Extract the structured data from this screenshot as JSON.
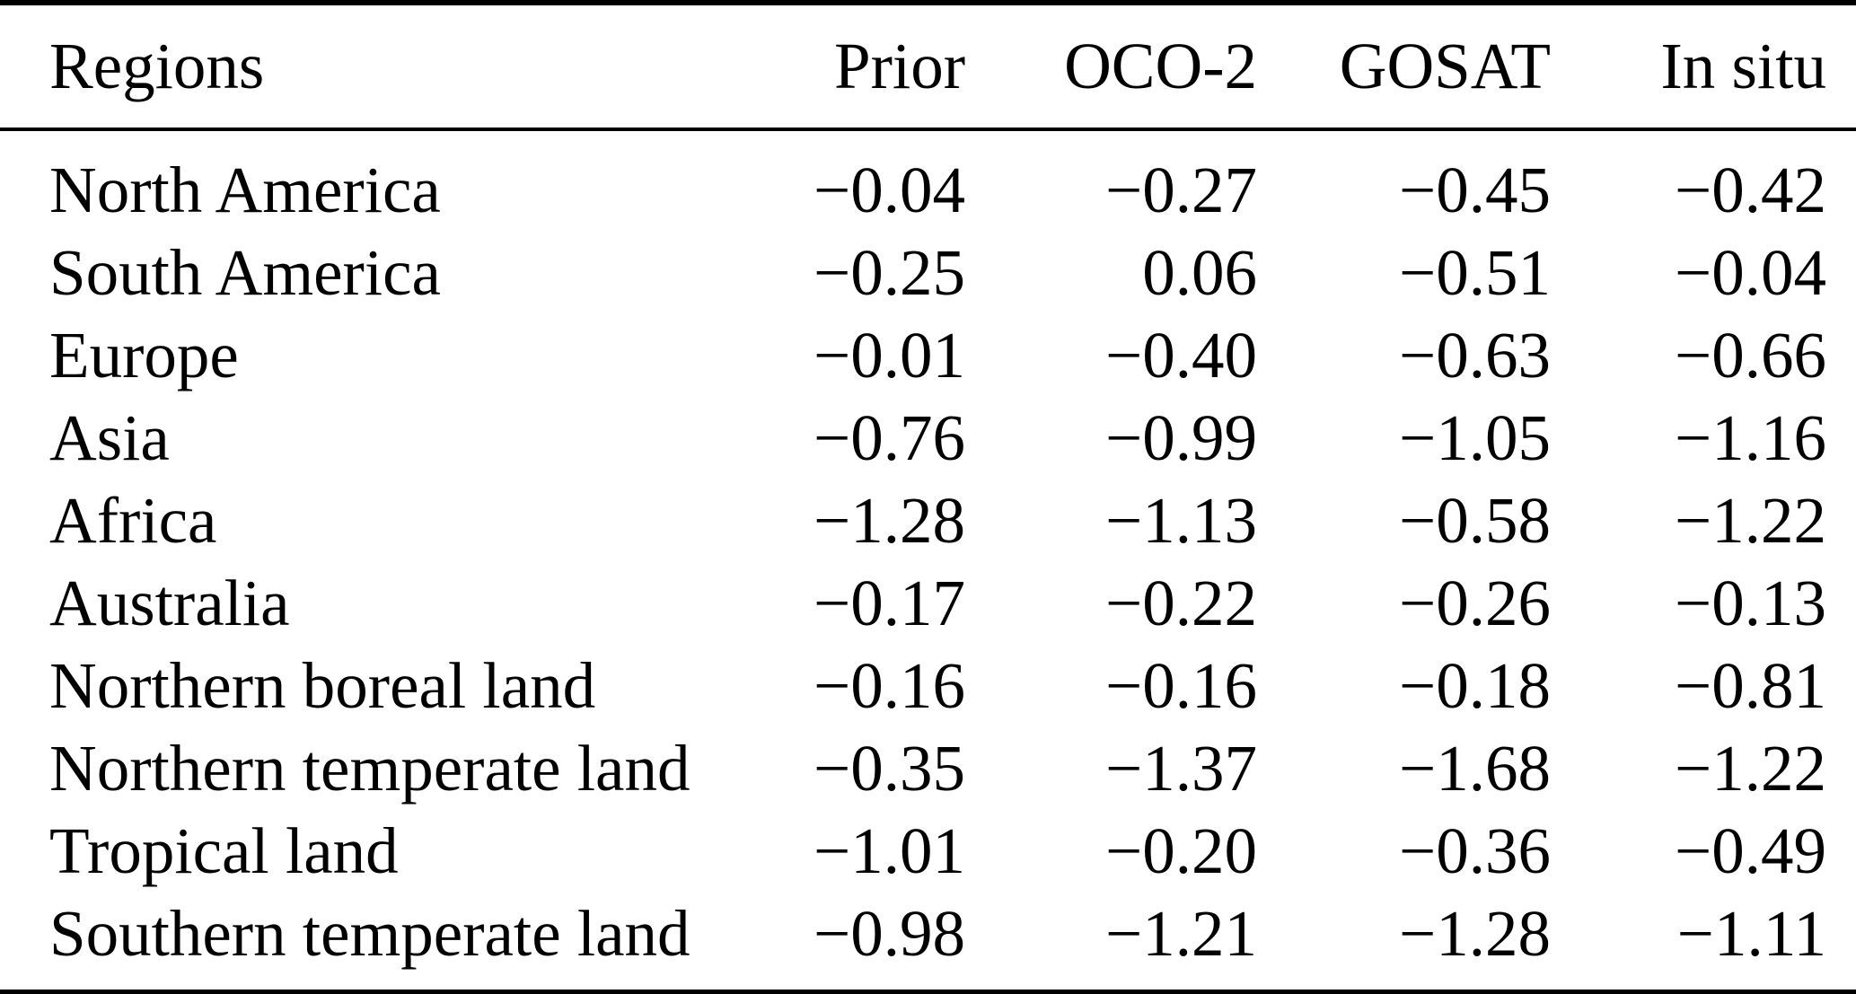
{
  "colors": {
    "text": "#000000",
    "background": "#ffffff",
    "rule": "#000000"
  },
  "table": {
    "columns": [
      "Regions",
      "Prior",
      "OCO-2",
      "GOSAT",
      "In situ"
    ],
    "rows": [
      {
        "region": "North America",
        "values": [
          "−0.04",
          "−0.27",
          "−0.45",
          "−0.42"
        ]
      },
      {
        "region": "South America",
        "values": [
          "−0.25",
          "0.06",
          "−0.51",
          "−0.04"
        ]
      },
      {
        "region": "Europe",
        "values": [
          "−0.01",
          "−0.40",
          "−0.63",
          "−0.66"
        ]
      },
      {
        "region": "Asia",
        "values": [
          "−0.76",
          "−0.99",
          "−1.05",
          "−1.16"
        ]
      },
      {
        "region": "Africa",
        "values": [
          "−1.28",
          "−1.13",
          "−0.58",
          "−1.22"
        ]
      },
      {
        "region": "Australia",
        "values": [
          "−0.17",
          "−0.22",
          "−0.26",
          "−0.13"
        ]
      },
      {
        "region": "Northern boreal land",
        "values": [
          "−0.16",
          "−0.16",
          "−0.18",
          "−0.81"
        ]
      },
      {
        "region": "Northern temperate land",
        "values": [
          "−0.35",
          "−1.37",
          "−1.68",
          "−1.22"
        ]
      },
      {
        "region": "Tropical land",
        "values": [
          "−1.01",
          "−0.20",
          "−0.36",
          "−0.49"
        ]
      },
      {
        "region": "Southern temperate land",
        "values": [
          "−0.98",
          "−1.21",
          "−1.28",
          "−1.11"
        ]
      }
    ]
  },
  "chart_data": {
    "type": "table",
    "title": "",
    "categories": [
      "North America",
      "South America",
      "Europe",
      "Asia",
      "Africa",
      "Australia",
      "Northern boreal land",
      "Northern temperate land",
      "Tropical land",
      "Southern temperate land"
    ],
    "series": [
      {
        "name": "Prior",
        "values": [
          -0.04,
          -0.25,
          -0.01,
          -0.76,
          -1.28,
          -0.17,
          -0.16,
          -0.35,
          -1.01,
          -0.98
        ]
      },
      {
        "name": "OCO-2",
        "values": [
          -0.27,
          0.06,
          -0.4,
          -0.99,
          -1.13,
          -0.22,
          -0.16,
          -1.37,
          -0.2,
          -1.21
        ]
      },
      {
        "name": "GOSAT",
        "values": [
          -0.45,
          -0.51,
          -0.63,
          -1.05,
          -0.58,
          -0.26,
          -0.18,
          -1.68,
          -0.36,
          -1.28
        ]
      },
      {
        "name": "In situ",
        "values": [
          -0.42,
          -0.04,
          -0.66,
          -1.16,
          -1.22,
          -0.13,
          -0.81,
          -1.22,
          -0.49,
          -1.11
        ]
      }
    ]
  }
}
